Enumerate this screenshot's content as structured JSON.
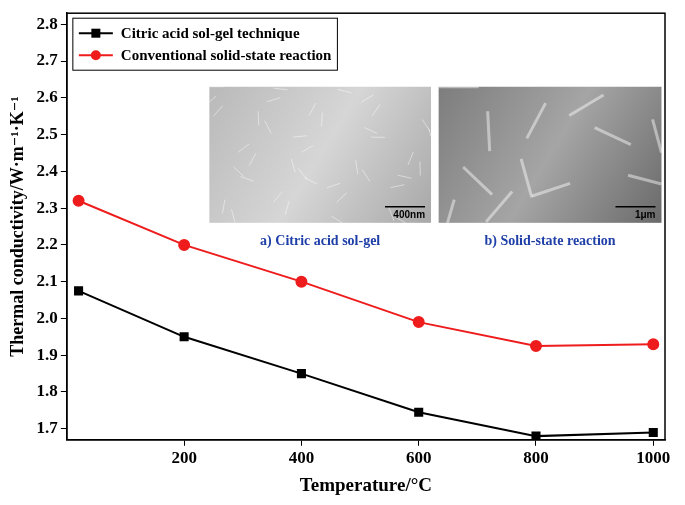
{
  "chart_data": {
    "type": "line",
    "x_label": "Temperature/°C",
    "y_label": "Thermal conductivity/W·m⁻¹·K⁻¹",
    "x": [
      20,
      200,
      400,
      600,
      800,
      1000
    ],
    "series": [
      {
        "name": "Citric acid sol-gel technique",
        "color": "#000000",
        "marker": "square",
        "line_style": "solid",
        "values": [
          2.075,
          1.95,
          1.85,
          1.745,
          1.68,
          1.69
        ]
      },
      {
        "name": "Conventional solid-state reaction",
        "color": "#ee1c1c",
        "marker": "circle",
        "line_style": "solid",
        "values": [
          2.32,
          2.2,
          2.1,
          1.99,
          1.925,
          1.93
        ]
      }
    ],
    "xlim": [
      0,
      1020
    ],
    "xticks": [
      200,
      400,
      600,
      800,
      1000
    ],
    "ylim": [
      1.67,
      2.83
    ],
    "yticks": [
      1.7,
      1.8,
      1.9,
      {
        "value": 2,
        "label": "2.0"
      },
      2.1,
      2.2,
      2.3,
      2.4,
      2.5,
      2.6,
      2.7,
      2.8
    ],
    "grid": false,
    "legend": "upper left",
    "annotations": [
      {
        "text": "a) Citric acid sol-gel",
        "scale_bar": "400nm"
      },
      {
        "text": "b) Solid-state reaction",
        "scale_bar": "1μm"
      }
    ]
  }
}
